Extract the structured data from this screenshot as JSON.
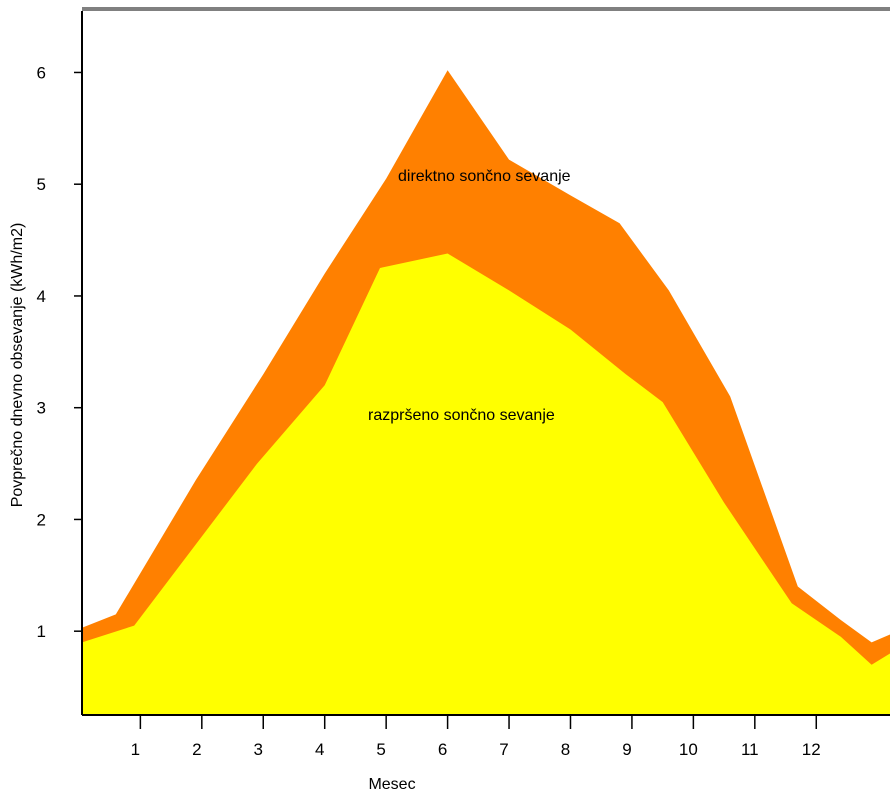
{
  "chart_data": {
    "type": "area",
    "stacked": true,
    "xlabel": "Mesec",
    "ylabel": "Povprečno dnevno obsevanje (kWh/m2)",
    "x_ticks": [
      "1",
      "2",
      "3",
      "4",
      "5",
      "6",
      "7",
      "8",
      "9",
      "10",
      "11",
      "12"
    ],
    "y_ticks": [
      "1",
      "2",
      "3",
      "4",
      "5",
      "6"
    ],
    "xlim": [
      0.05,
      13.2
    ],
    "ylim": [
      0.25,
      6.55
    ],
    "grid": false,
    "colors": {
      "diffuse": "#ffff00",
      "direct": "#ff8000",
      "background": "#ffffff",
      "axis": "#000000",
      "frame": "#808080"
    },
    "series": [
      {
        "key": "diffuse",
        "label": "razpršeno sončno sevanje",
        "points": [
          [
            0.05,
            0.9
          ],
          [
            0.9,
            1.05
          ],
          [
            2.9,
            2.5
          ],
          [
            4.0,
            3.2
          ],
          [
            4.9,
            4.25
          ],
          [
            6.0,
            4.38
          ],
          [
            7.0,
            4.05
          ],
          [
            8.0,
            3.7
          ],
          [
            8.9,
            3.3
          ],
          [
            9.5,
            3.05
          ],
          [
            10.5,
            2.15
          ],
          [
            11.6,
            1.25
          ],
          [
            12.4,
            0.95
          ],
          [
            12.9,
            0.7
          ],
          [
            13.2,
            0.8
          ]
        ]
      },
      {
        "key": "direct",
        "label": "direktno sončno sevanje",
        "top_points": [
          [
            0.05,
            1.03
          ],
          [
            0.6,
            1.15
          ],
          [
            1.9,
            2.35
          ],
          [
            3.0,
            3.3
          ],
          [
            4.0,
            4.2
          ],
          [
            5.0,
            5.05
          ],
          [
            6.0,
            6.02
          ],
          [
            7.0,
            5.22
          ],
          [
            8.0,
            4.9
          ],
          [
            8.8,
            4.65
          ],
          [
            9.6,
            4.05
          ],
          [
            10.6,
            3.1
          ],
          [
            11.7,
            1.4
          ],
          [
            12.4,
            1.1
          ],
          [
            12.9,
            0.9
          ],
          [
            13.2,
            0.97
          ]
        ]
      }
    ]
  }
}
